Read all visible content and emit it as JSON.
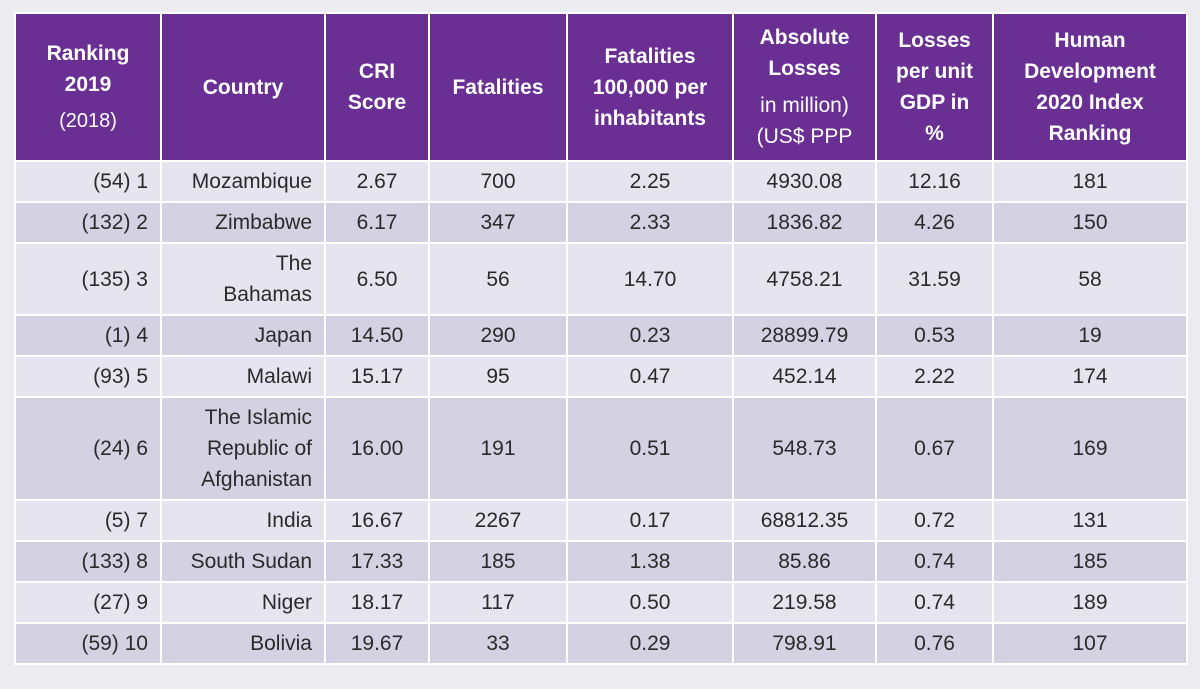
{
  "headers": {
    "ranking_line1": "Ranking",
    "ranking_line2": "2019",
    "ranking_line3": "(2018)",
    "country": "Country",
    "cri_line1": "CRI",
    "cri_line2": "Score",
    "fatalities": "Fatalities",
    "fat100k_line1": "Fatalities",
    "fat100k_line2": "100,000 per",
    "fat100k_line3": "inhabitants",
    "abs_line1": "Absolute",
    "abs_line2": "Losses",
    "abs_line3": "in million)",
    "abs_line4": "(US$ PPP",
    "lpu_line1": "Losses",
    "lpu_line2": "per unit",
    "lpu_line3": "GDP in",
    "lpu_line4": "%",
    "hdi_line1": "Human",
    "hdi_line2": "Development",
    "hdi_line3": "2020 Index",
    "hdi_line4": "Ranking"
  },
  "rows": [
    {
      "ranking": "(54) 1",
      "country": "Mozambique",
      "cri": "2.67",
      "fatalities": "700",
      "fat100k": "2.25",
      "abs_losses": "4930.08",
      "losses_gdp": "12.16",
      "hdi": "181"
    },
    {
      "ranking": "(132) 2",
      "country": "Zimbabwe",
      "cri": "6.17",
      "fatalities": "347",
      "fat100k": "2.33",
      "abs_losses": "1836.82",
      "losses_gdp": "4.26",
      "hdi": "150"
    },
    {
      "ranking": "(135) 3",
      "country_line1": "The",
      "country_line2": "Bahamas",
      "cri": "6.50",
      "fatalities": "56",
      "fat100k": "14.70",
      "abs_losses": "4758.21",
      "losses_gdp": "31.59",
      "hdi": "58"
    },
    {
      "ranking": "(1) 4",
      "country": "Japan",
      "cri": "14.50",
      "fatalities": "290",
      "fat100k": "0.23",
      "abs_losses": "28899.79",
      "losses_gdp": "0.53",
      "hdi": "19"
    },
    {
      "ranking": "(93) 5",
      "country": "Malawi",
      "cri": "15.17",
      "fatalities": "95",
      "fat100k": "0.47",
      "abs_losses": "452.14",
      "losses_gdp": "2.22",
      "hdi": "174"
    },
    {
      "ranking": "(24) 6",
      "country_line1": "The Islamic",
      "country_line2": "Republic of",
      "country_line3": "Afghanistan",
      "cri": "16.00",
      "fatalities": "191",
      "fat100k": "0.51",
      "abs_losses": "548.73",
      "losses_gdp": "0.67",
      "hdi": "169"
    },
    {
      "ranking": "(5) 7",
      "country": "India",
      "cri": "16.67",
      "fatalities": "2267",
      "fat100k": "0.17",
      "abs_losses": "68812.35",
      "losses_gdp": "0.72",
      "hdi": "131"
    },
    {
      "ranking": "(133) 8",
      "country": "South Sudan",
      "cri": "17.33",
      "fatalities": "185",
      "fat100k": "1.38",
      "abs_losses": "85.86",
      "losses_gdp": "0.74",
      "hdi": "185"
    },
    {
      "ranking": "(27) 9",
      "country": "Niger",
      "cri": "18.17",
      "fatalities": "117",
      "fat100k": "0.50",
      "abs_losses": "219.58",
      "losses_gdp": "0.74",
      "hdi": "189"
    },
    {
      "ranking": "(59) 10",
      "country": "Bolivia",
      "cri": "19.67",
      "fatalities": "33",
      "fat100k": "0.29",
      "abs_losses": "798.91",
      "losses_gdp": "0.76",
      "hdi": "107"
    }
  ]
}
